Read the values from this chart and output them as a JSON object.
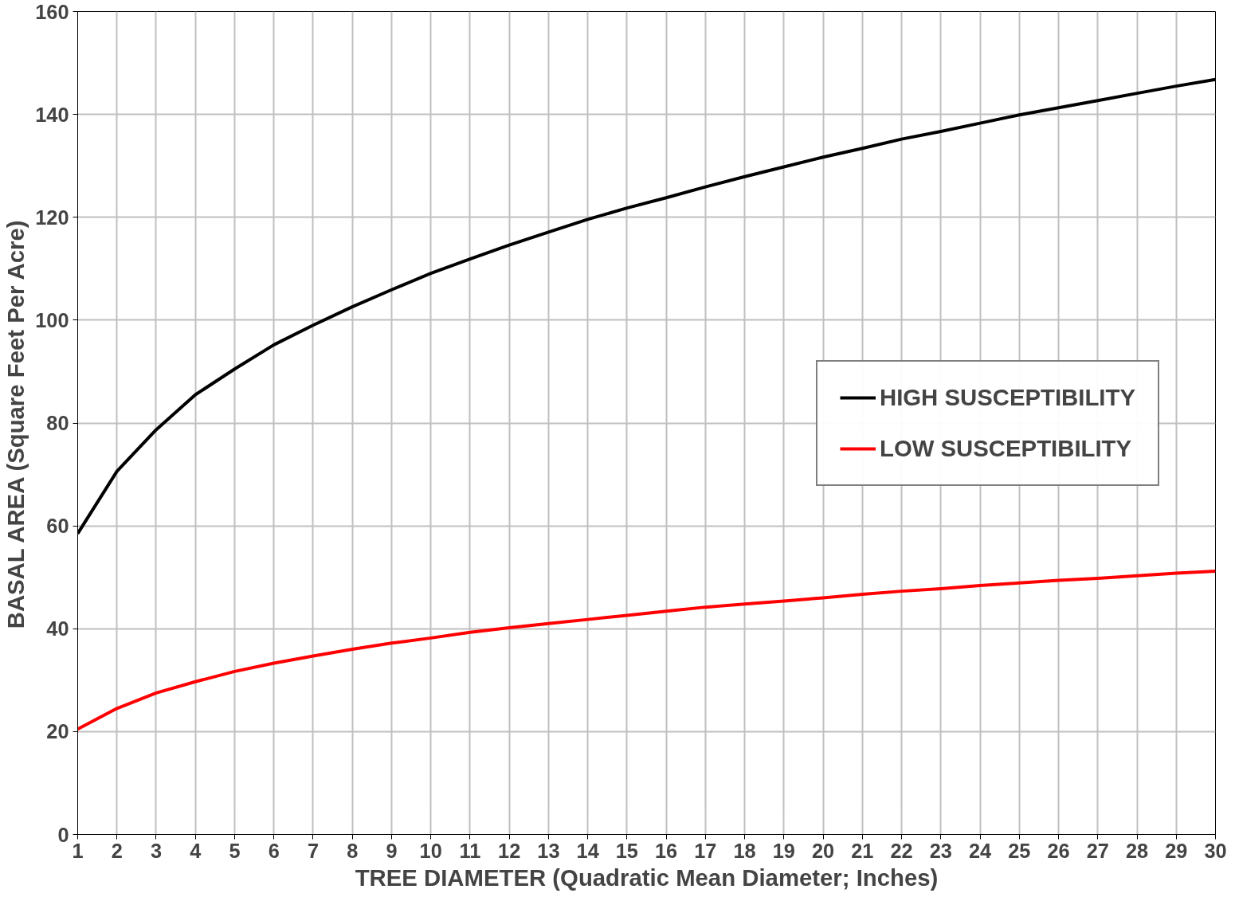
{
  "chart_data": {
    "type": "line",
    "xlabel": "TREE DIAMETER (Quadratic Mean Diameter; Inches)",
    "ylabel": "BASAL AREA (Square Feet Per Acre)",
    "x": [
      1,
      2,
      3,
      4,
      5,
      6,
      7,
      8,
      9,
      10,
      11,
      12,
      13,
      14,
      15,
      16,
      17,
      18,
      19,
      20,
      21,
      22,
      23,
      24,
      25,
      26,
      27,
      28,
      29,
      30
    ],
    "series": [
      {
        "name": "HIGH SUSCEPTIBILITY",
        "color": "#000000",
        "values": [
          58.5,
          70.6,
          78.7,
          85.5,
          90.5,
          95.2,
          99,
          102.6,
          105.9,
          109.1,
          111.9,
          114.6,
          117.1,
          119.6,
          121.8,
          123.8,
          125.9,
          127.9,
          129.8,
          131.7,
          133.4,
          135.2,
          136.7,
          138.3,
          139.9,
          141.3,
          142.7,
          144.1,
          145.5,
          146.8
        ]
      },
      {
        "name": "LOW SUSCEPTIBILITY",
        "color": "#ff0000",
        "values": [
          20.5,
          24.5,
          27.5,
          29.7,
          31.7,
          33.3,
          34.7,
          36,
          37.2,
          38.2,
          39.3,
          40.2,
          41,
          41.8,
          42.6,
          43.4,
          44.2,
          44.8,
          45.4,
          46,
          46.7,
          47.3,
          47.8,
          48.4,
          48.9,
          49.4,
          49.8,
          50.3,
          50.8,
          51.2
        ]
      }
    ],
    "xlim": [
      1,
      30
    ],
    "xticks": [
      1,
      2,
      3,
      4,
      5,
      6,
      7,
      8,
      9,
      10,
      11,
      12,
      13,
      14,
      15,
      16,
      17,
      18,
      19,
      20,
      21,
      22,
      23,
      24,
      25,
      26,
      27,
      28,
      29,
      30
    ],
    "ylim": [
      0,
      160
    ],
    "yticks": [
      0,
      20,
      40,
      60,
      80,
      100,
      120,
      140,
      160
    ],
    "grid": true,
    "legend": "right",
    "line_style": "solid"
  }
}
